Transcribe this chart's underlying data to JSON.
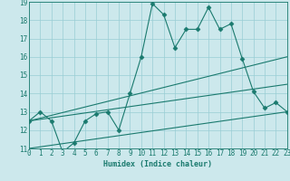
{
  "title": "",
  "xlabel": "Humidex (Indice chaleur)",
  "bg_color": "#cce8ec",
  "grid_color": "#99cdd4",
  "line_color": "#1a7a6e",
  "xmin": 0,
  "xmax": 23,
  "ymin": 11,
  "ymax": 19,
  "x": [
    0,
    1,
    2,
    3,
    4,
    5,
    6,
    7,
    8,
    9,
    10,
    11,
    12,
    13,
    14,
    15,
    16,
    17,
    18,
    19,
    20,
    21,
    22,
    23
  ],
  "series1": [
    12.5,
    13.0,
    12.5,
    10.8,
    11.3,
    12.5,
    12.9,
    13.0,
    12.0,
    14.0,
    16.0,
    18.9,
    18.3,
    16.5,
    17.5,
    17.5,
    18.7,
    17.5,
    17.8,
    15.9,
    14.1,
    13.2,
    13.5,
    13.0
  ],
  "series2_x": [
    0,
    23
  ],
  "series2_y": [
    12.5,
    16.0
  ],
  "series3_x": [
    0,
    23
  ],
  "series3_y": [
    12.5,
    14.5
  ],
  "series4_x": [
    0,
    23
  ],
  "series4_y": [
    11.0,
    13.0
  ]
}
